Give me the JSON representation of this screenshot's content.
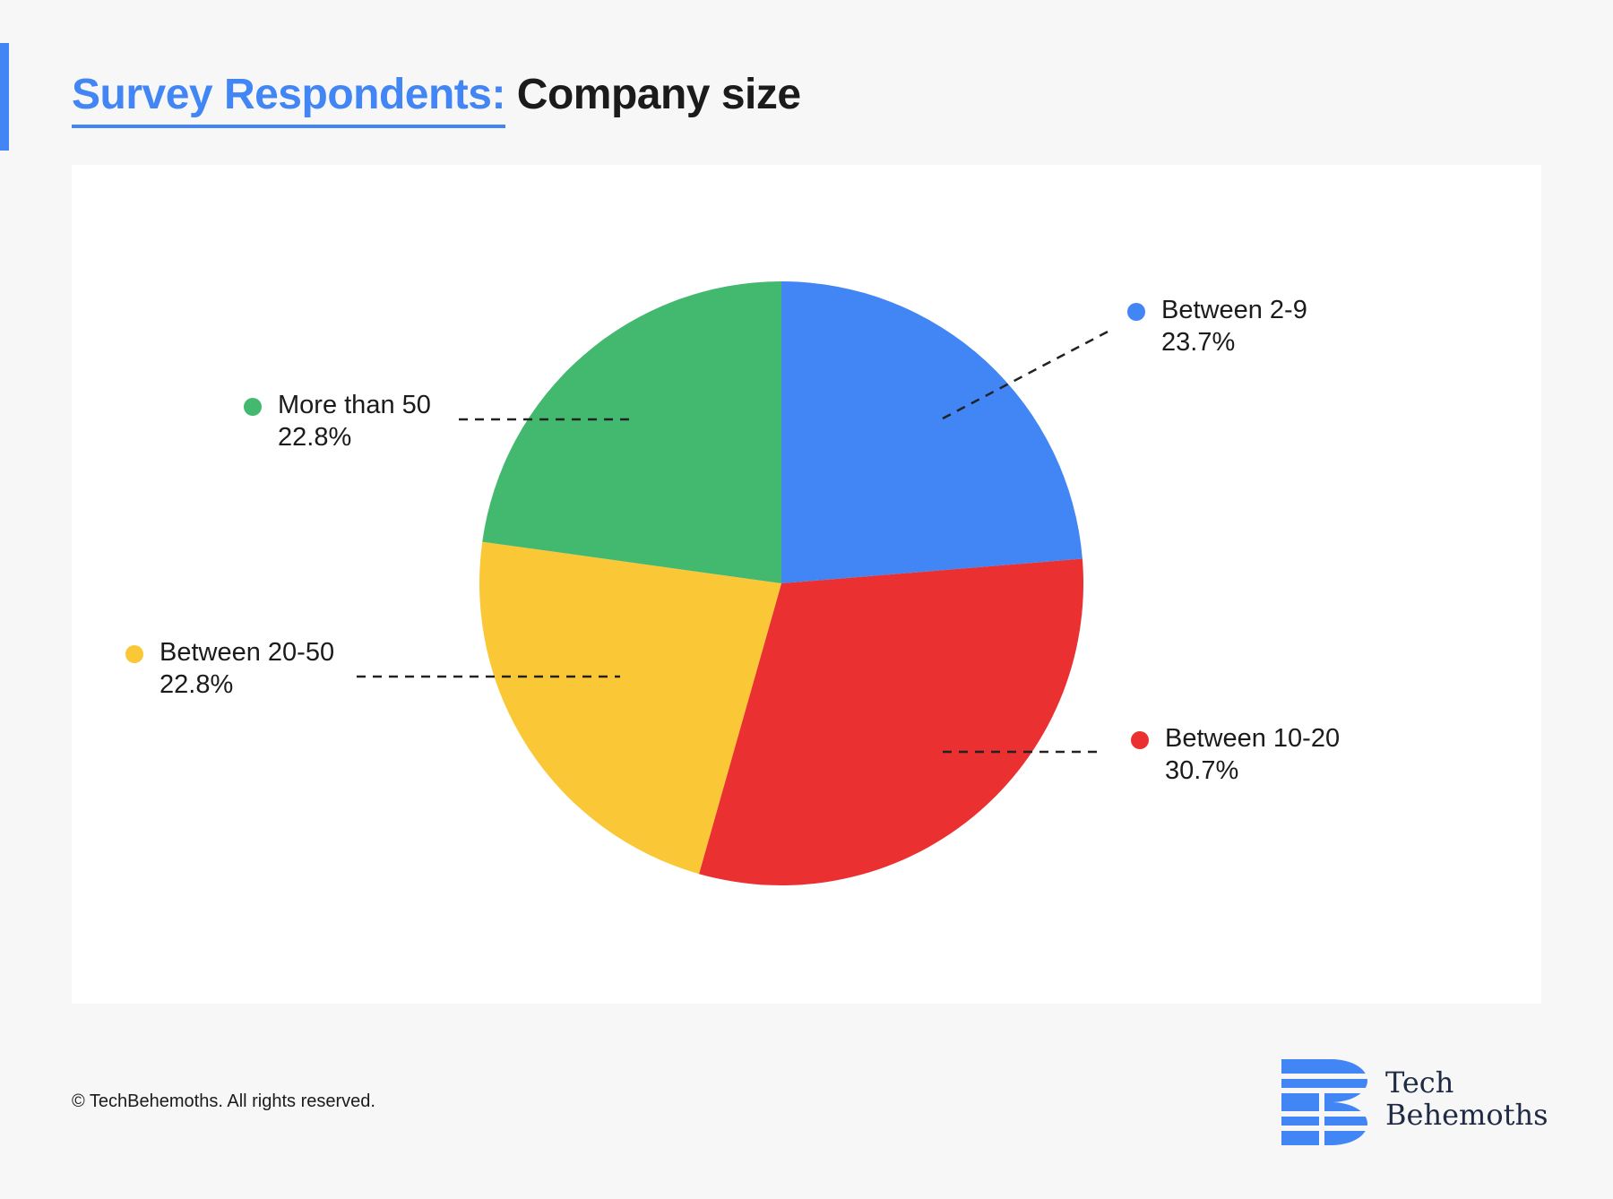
{
  "header": {
    "title_lead": "Survey Respondents:",
    "title_rest": "Company size"
  },
  "colors": {
    "accent": "#4285f4",
    "blue": "#4285f4",
    "red": "#ea3030",
    "yellow": "#fac836",
    "green": "#43b86f"
  },
  "chart_data": {
    "type": "pie",
    "title": "Survey Respondents: Company size",
    "slices": [
      {
        "label": "Between 2-9",
        "value": 23.7,
        "display": "23.7%",
        "color": "#4285f4"
      },
      {
        "label": "Between 10-20",
        "value": 30.7,
        "display": "30.7%",
        "color": "#ea3030"
      },
      {
        "label": "Between 20-50",
        "value": 22.8,
        "display": "22.8%",
        "color": "#fac836"
      },
      {
        "label": "More than 50",
        "value": 22.8,
        "display": "22.8%",
        "color": "#43b86f"
      }
    ],
    "start_angle": "12 o'clock",
    "direction": "clockwise"
  },
  "footer": {
    "copyright": "© TechBehemoths. All rights reserved.",
    "logo_line1": "Tech",
    "logo_line2": "Behemoths"
  }
}
